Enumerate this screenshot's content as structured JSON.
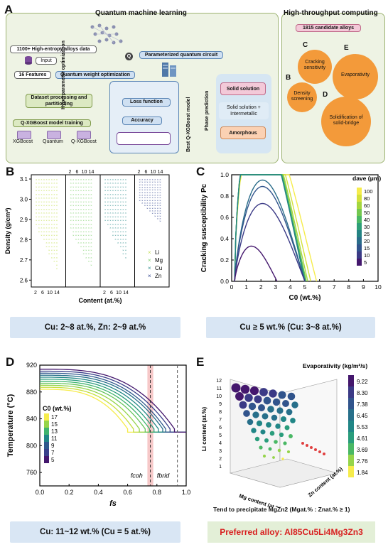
{
  "panel_labels": {
    "a": "A",
    "b": "B",
    "c": "C",
    "d": "D",
    "e": "E"
  },
  "panel_a": {
    "title_left": "Quantum machine learning",
    "title_right": "High-throughput computing",
    "data_label": "1100+ High-entropy alloys data",
    "input_label": "Input",
    "features_label": "16 Features",
    "qwo_label": "Quantum weight optimization",
    "pqc_label": "Parameterized quantum circuit",
    "dataset_label": "Dataset processing and partitioning",
    "training_label": "Q-XGBoost model training",
    "model_names": [
      "XGBoost",
      "Quantum",
      "Q-XGBoost"
    ],
    "hyper_label": "Hyperparameter optimization",
    "loss_label": "Loss function",
    "accuracy_label": "Accuracy",
    "best_label": "Best Q-XGBoost model",
    "phase_label": "Phase prediction",
    "phases": [
      "Solid solution",
      "Solid solution + Intermetallic",
      "Amorphous"
    ],
    "candidate_label": "1815 candidate alloys",
    "circles": [
      {
        "letter": "C",
        "text": "Cracking sensitivity"
      },
      {
        "letter": "E",
        "text": "Evaporativity"
      },
      {
        "letter": "B",
        "text": "Density screening"
      },
      {
        "letter": "D",
        "text": "Solidification of solid-bridge"
      }
    ],
    "colors": {
      "green": "#dce9c2",
      "blue": "#cfe0f2",
      "pink": "#f3c9d8",
      "orange": "#fbd1b3",
      "circle": "#f39a3a"
    }
  },
  "panel_b": {
    "ylabel": "Density (g/cm³)",
    "xlabel": "Content (at.%)",
    "yticks": [
      "3.1",
      "3.0",
      "2.9",
      "2.8",
      "2.7",
      "2.6"
    ],
    "xticks_bottom": [
      "2",
      "6",
      "10",
      "14"
    ],
    "xticks_top": [
      "2",
      "6",
      "10",
      "14"
    ],
    "legend": [
      "Li",
      "Mg",
      "Cu",
      "Zn"
    ],
    "colors": [
      "#c5e05a",
      "#7ccf6a",
      "#2f8e8c",
      "#2b3f8a"
    ],
    "summary": "Cu: 2~8 at.%, Zn: 2~9 at.%"
  },
  "chart_data": [
    {
      "type": "line",
      "title": "",
      "xlabel": "C0 (wt.%)",
      "ylabel": "Cracking susceptibility Pc",
      "xlim": [
        0,
        10
      ],
      "ylim": [
        0,
        1.0
      ],
      "xticks": [
        "0",
        "1",
        "2",
        "3",
        "4",
        "5",
        "6",
        "7",
        "8",
        "9",
        "10"
      ],
      "yticks": [
        "0.0",
        "0.2",
        "0.4",
        "0.6",
        "0.8",
        "1.0"
      ],
      "legend_title": "dave (μm)",
      "series": [
        {
          "name": "100",
          "peak": 1.0,
          "end": 5.8,
          "color": "#f6ec4c"
        },
        {
          "name": "80",
          "peak": 1.0,
          "end": 5.4,
          "color": "#d4e13c"
        },
        {
          "name": "60",
          "peak": 1.0,
          "end": 5.2,
          "color": "#a4d63e"
        },
        {
          "name": "50",
          "peak": 1.0,
          "end": 5.1,
          "color": "#73c84f"
        },
        {
          "name": "40",
          "peak": 1.0,
          "end": 5.05,
          "color": "#4ab865"
        },
        {
          "name": "30",
          "peak": 1.0,
          "end": 5.0,
          "color": "#2e9f78"
        },
        {
          "name": "25",
          "peak": 0.99,
          "end": 5.0,
          "color": "#238383"
        },
        {
          "name": "20",
          "peak": 0.95,
          "end": 5.0,
          "color": "#2a6c8a"
        },
        {
          "name": "15",
          "peak": 0.89,
          "end": 5.0,
          "color": "#31548c"
        },
        {
          "name": "10",
          "peak": 0.73,
          "end": 5.0,
          "color": "#3b3a86"
        },
        {
          "name": "5",
          "peak": 0.33,
          "end": 3.1,
          "color": "#44176d"
        }
      ],
      "summary": "Cu ≥ 5 wt.% (Cu: 3~8 at.%)"
    },
    {
      "type": "line",
      "title": "",
      "xlabel": "fs",
      "ylabel": "Temperature (°C)",
      "xlim": [
        0,
        1.0
      ],
      "ylim": [
        740,
        920
      ],
      "xticks": [
        "0.0",
        "0.2",
        "0.4",
        "0.6",
        "0.8",
        "1.0"
      ],
      "yticks": [
        "760",
        "800",
        "840",
        "880",
        "920"
      ],
      "legend_title": "C0 (wt.%)",
      "annotations": [
        "fcoh",
        "fbrid"
      ],
      "series": [
        {
          "name": "17",
          "start": 884,
          "end_fs": 0.6,
          "color": "#f6ec4c"
        },
        {
          "name": "16",
          "start": 887,
          "end_fs": 0.64,
          "color": "#c6df3f"
        },
        {
          "name": "15",
          "start": 890,
          "end_fs": 0.68,
          "color": "#95d44a"
        },
        {
          "name": "14",
          "start": 893,
          "end_fs": 0.72,
          "color": "#66c55c"
        },
        {
          "name": "13",
          "start": 896,
          "end_fs": 0.75,
          "color": "#3fb46e"
        },
        {
          "name": "12",
          "start": 899,
          "end_fs": 0.78,
          "color": "#2a9d7c"
        },
        {
          "name": "11",
          "start": 902,
          "end_fs": 0.81,
          "color": "#218686"
        },
        {
          "name": "10",
          "start": 905,
          "end_fs": 0.84,
          "color": "#276f8a"
        },
        {
          "name": "9",
          "start": 908,
          "end_fs": 0.86,
          "color": "#2f598d"
        },
        {
          "name": "7",
          "start": 911,
          "end_fs": 0.89,
          "color": "#39408a"
        },
        {
          "name": "5",
          "start": 914,
          "end_fs": 0.92,
          "color": "#44176d"
        }
      ],
      "legend_labels": [
        "17",
        "15",
        "13",
        "11",
        "9",
        "7",
        "5"
      ],
      "summary": "Cu: 11~12 wt.% (Cu = 5 at.%)"
    },
    {
      "type": "scatter",
      "title": "Evaporativity (kg/m²/s)",
      "xlabel": "Mg content (at.%)",
      "ylabel": "Li content (at.%)",
      "zlabel": "Zn content (at.%)",
      "yticks": [
        "12",
        "11",
        "10",
        "9",
        "8",
        "7",
        "6",
        "5",
        "4",
        "3",
        "2",
        "1"
      ],
      "colorbar": [
        "9.22",
        "8.30",
        "7.38",
        "6.45",
        "5.53",
        "4.61",
        "3.69",
        "2.76",
        "1.84"
      ],
      "note": "Tend to precipitate MgZn2 (Mgat.% : Znat.% ≥ 1)",
      "summary": "Preferred alloy: Al85Cu5Li4Mg3Zn3"
    }
  ]
}
